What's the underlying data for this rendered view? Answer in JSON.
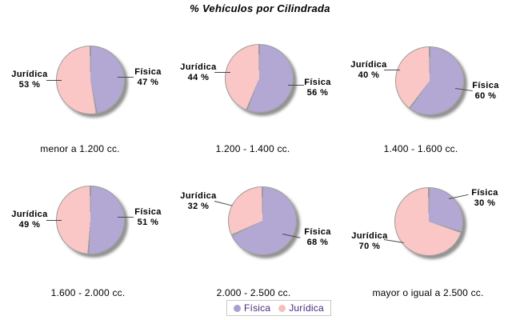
{
  "title": "% Vehículos por Cilindrada",
  "chart_data": {
    "type": "pie",
    "title": "% Vehículos por Cilindrada",
    "layout": "2 rows x 3 columns of pies, legend bottom center, labels with leader lines, gray drop shadow",
    "colors": {
      "fisica": "#b2a8d3",
      "juridica": "#fac7c6",
      "outline": "#9b9b9b"
    },
    "slice_order": "starts at 12 o'clock, clockwise: Física then Jurídica",
    "pies": [
      {
        "category": "menor a 1.200 cc.",
        "fisica": {
          "label": "Física",
          "value": 47,
          "pct_text": "47 %"
        },
        "juridica": {
          "label": "Jurídica",
          "value": 53,
          "pct_text": "53 %"
        }
      },
      {
        "category": "1.200 - 1.400 cc.",
        "fisica": {
          "label": "Física",
          "value": 56,
          "pct_text": "56 %"
        },
        "juridica": {
          "label": "Jurídica",
          "value": 44,
          "pct_text": "44 %"
        }
      },
      {
        "category": "1.400 - 1.600 cc.",
        "fisica": {
          "label": "Física",
          "value": 60,
          "pct_text": "60 %"
        },
        "juridica": {
          "label": "Jurídica",
          "value": 40,
          "pct_text": "40 %"
        }
      },
      {
        "category": "1.600 - 2.000 cc.",
        "fisica": {
          "label": "Física",
          "value": 51,
          "pct_text": "51 %"
        },
        "juridica": {
          "label": "Jurídica",
          "value": 49,
          "pct_text": "49 %"
        }
      },
      {
        "category": "2.000 - 2.500 cc.",
        "fisica": {
          "label": "Física",
          "value": 68,
          "pct_text": "68 %"
        },
        "juridica": {
          "label": "Jurídica",
          "value": 32,
          "pct_text": "32 %"
        }
      },
      {
        "category": "mayor o igual a 2.500 cc.",
        "fisica": {
          "label": "Física",
          "value": 30,
          "pct_text": "30 %"
        },
        "juridica": {
          "label": "Jurídica",
          "value": 70,
          "pct_text": "70 %"
        }
      }
    ],
    "legend": {
      "position": "bottom-center",
      "entries": [
        {
          "label": "Física",
          "color": "#a9a0cf"
        },
        {
          "label": "Jurídica",
          "color": "#f6bfbe"
        }
      ]
    }
  },
  "legend": {
    "fisica_label": "Física",
    "juridica_label": "Jurídica"
  }
}
